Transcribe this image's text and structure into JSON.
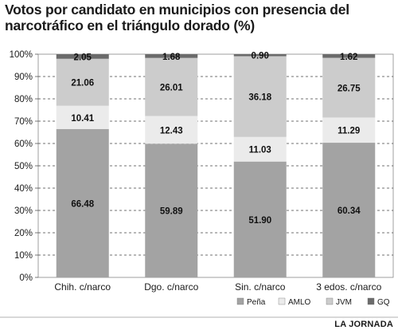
{
  "header": {
    "title_line1": "Votos por candidato en municipios con presencia del",
    "title_line2": "narcotráfico en el triángulo dorado (%)"
  },
  "credit": "LA JORNADA",
  "chart_data": {
    "type": "bar",
    "stacked": true,
    "title": "Votos por candidato en municipios con presencia del narcotráfico en el triángulo dorado (%)",
    "xlabel": "",
    "ylabel": "",
    "ylim": [
      0,
      100
    ],
    "y_ticks": [
      "0%",
      "10%",
      "20%",
      "30%",
      "40%",
      "50%",
      "60%",
      "70%",
      "80%",
      "90%",
      "100%"
    ],
    "grid": true,
    "legend_position": "bottom-right",
    "categories": [
      "Chih. c/narco",
      "Dgo. c/narco",
      "Sin. c/narco",
      "3 edos. c/narco"
    ],
    "series": [
      {
        "name": "Peña",
        "values": [
          66.48,
          59.89,
          51.9,
          60.34
        ],
        "labels": [
          "66.48",
          "59.89",
          "51.90",
          "60.34"
        ],
        "color": "#a3a3a3"
      },
      {
        "name": "AMLO",
        "values": [
          10.41,
          12.43,
          11.03,
          11.29
        ],
        "labels": [
          "10.41",
          "12.43",
          "11.03",
          "11.29"
        ],
        "color": "#ebebeb"
      },
      {
        "name": "JVM",
        "values": [
          21.06,
          26.01,
          36.18,
          26.75
        ],
        "labels": [
          "21.06",
          "26.01",
          "36.18",
          "26.75"
        ],
        "color": "#cccccc"
      },
      {
        "name": "GQ",
        "values": [
          2.05,
          1.68,
          0.9,
          1.62
        ],
        "labels": [
          "2.05",
          "1.68",
          "0.90",
          "1.62"
        ],
        "color": "#6b6b6b"
      }
    ]
  }
}
